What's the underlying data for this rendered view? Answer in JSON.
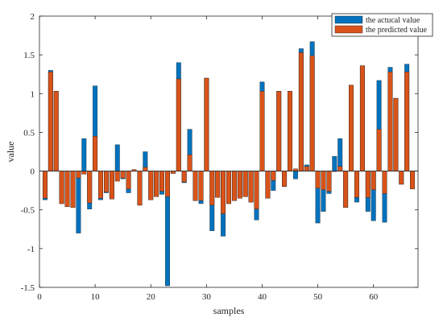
{
  "chart_data": {
    "type": "bar",
    "xlabel": "samples",
    "ylabel": "value",
    "xlim": [
      0,
      68
    ],
    "ylim": [
      -1.5,
      2
    ],
    "xticks": [
      0,
      10,
      20,
      30,
      40,
      50,
      60
    ],
    "yticks": [
      -1.5,
      -1,
      -0.5,
      0,
      0.5,
      1,
      1.5,
      2
    ],
    "grid": false,
    "legend_position": "top-right",
    "x": [
      1,
      2,
      3,
      4,
      5,
      6,
      7,
      8,
      9,
      10,
      11,
      12,
      13,
      14,
      15,
      16,
      17,
      18,
      19,
      20,
      21,
      22,
      23,
      24,
      25,
      26,
      27,
      28,
      29,
      30,
      31,
      32,
      33,
      34,
      35,
      36,
      37,
      38,
      39,
      40,
      41,
      42,
      43,
      44,
      45,
      46,
      47,
      48,
      49,
      50,
      51,
      52,
      53,
      54,
      55,
      56,
      57,
      58,
      59,
      60,
      61,
      62,
      63,
      64,
      65,
      66,
      67
    ],
    "series": [
      {
        "name": "the actucal value",
        "color": "#0072BD",
        "values": [
          -0.37,
          1.3,
          1.03,
          -0.42,
          -0.46,
          -0.47,
          -0.8,
          0.42,
          -0.49,
          1.1,
          -0.37,
          -0.28,
          -0.36,
          0.34,
          -0.1,
          -0.28,
          0.02,
          -0.44,
          0.25,
          -0.37,
          -0.33,
          -0.3,
          -1.48,
          -0.03,
          1.4,
          -0.15,
          0.54,
          -0.38,
          -0.42,
          1.2,
          -0.77,
          -0.34,
          -0.84,
          -0.42,
          -0.38,
          -0.35,
          -0.33,
          -0.4,
          -0.63,
          1.15,
          -0.35,
          -0.25,
          1.03,
          -0.2,
          1.03,
          -0.1,
          1.58,
          0.08,
          1.67,
          -0.67,
          -0.52,
          -0.29,
          0.19,
          0.42,
          -0.47,
          1.11,
          -0.4,
          1.36,
          -0.52,
          -0.64,
          1.17,
          -0.66,
          1.34,
          0.94,
          -0.17,
          1.38,
          -0.23
        ]
      },
      {
        "name": "the predicted value",
        "color": "#D95319",
        "values": [
          -0.35,
          1.28,
          1.03,
          -0.42,
          -0.46,
          -0.47,
          -0.09,
          -0.04,
          -0.41,
          0.45,
          -0.35,
          -0.27,
          -0.36,
          -0.13,
          -0.09,
          -0.23,
          0.02,
          -0.44,
          0.05,
          -0.37,
          -0.33,
          -0.26,
          -0.33,
          -0.03,
          1.19,
          -0.14,
          0.21,
          -0.38,
          -0.38,
          1.2,
          -0.44,
          -0.34,
          -0.55,
          -0.42,
          -0.38,
          -0.35,
          -0.33,
          -0.4,
          -0.49,
          1.03,
          -0.35,
          -0.12,
          1.03,
          -0.2,
          1.03,
          0.03,
          1.53,
          0.06,
          1.49,
          -0.22,
          -0.24,
          -0.26,
          0.0,
          0.06,
          -0.47,
          1.11,
          -0.34,
          1.36,
          -0.34,
          -0.24,
          0.54,
          -0.29,
          1.28,
          0.94,
          -0.17,
          1.28,
          -0.23
        ]
      }
    ]
  }
}
